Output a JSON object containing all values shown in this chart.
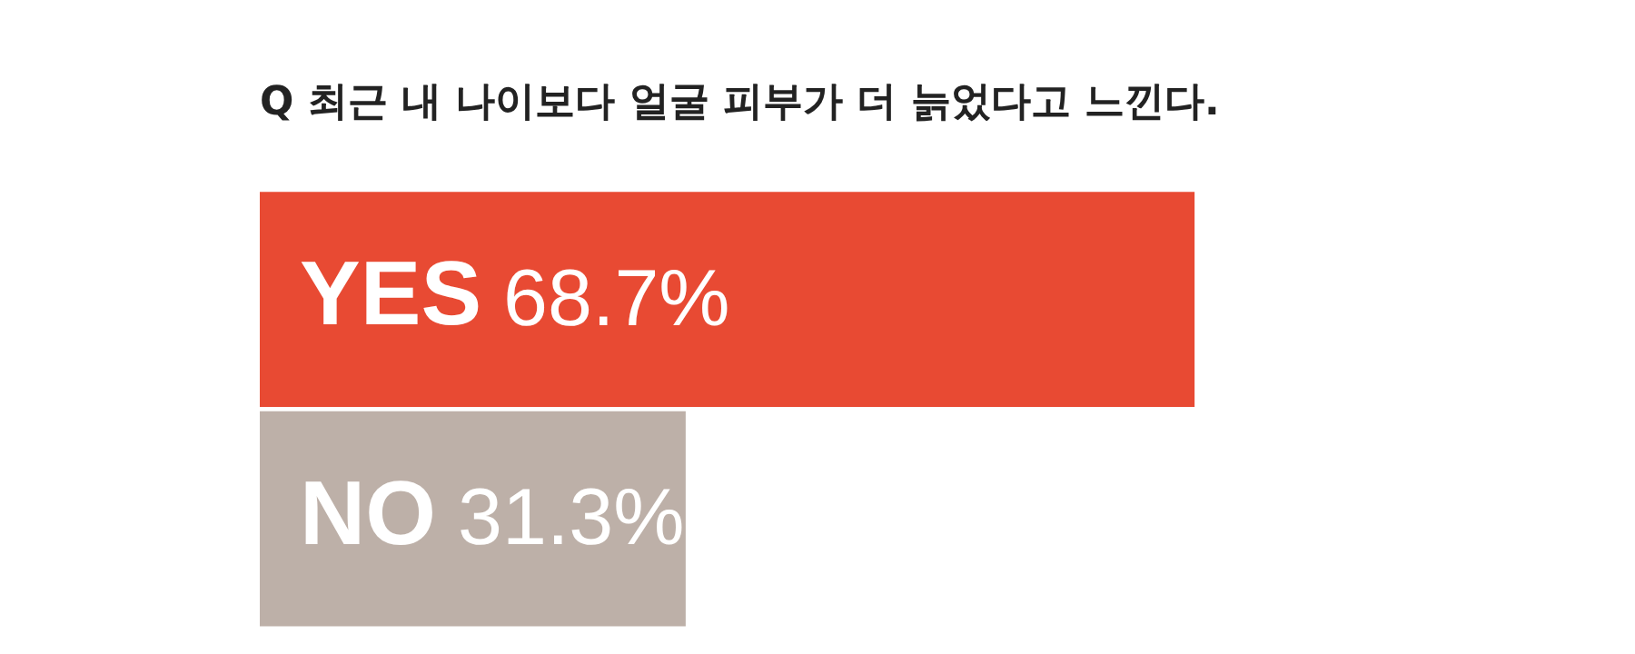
{
  "chart_data": {
    "type": "bar",
    "orientation": "horizontal",
    "title": "Q 최근 내 나이보다 얼굴 피부가 더 늙었다고 느낀다.",
    "categories": [
      "YES",
      "NO"
    ],
    "values": [
      68.7,
      31.3
    ],
    "colors": [
      "#e84a33",
      "#bdb0a8"
    ],
    "value_labels": [
      "68.7%",
      "31.3%"
    ],
    "grid": false,
    "legend": false,
    "tick_labels": false
  }
}
